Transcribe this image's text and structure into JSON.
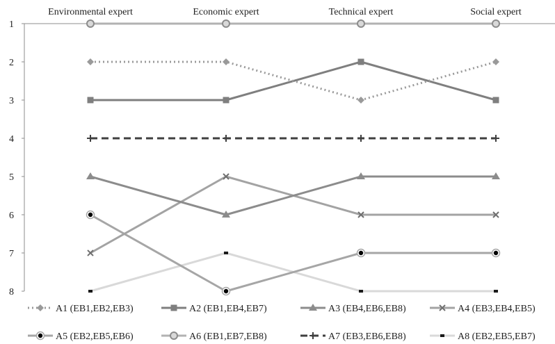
{
  "chart_data": {
    "type": "line",
    "title": "",
    "xlabel": "",
    "ylabel": "",
    "categories": [
      "Environmental expert",
      "Economic expert",
      "Technical expert",
      "Social expert"
    ],
    "y_ticks": [
      1,
      2,
      3,
      4,
      5,
      6,
      7,
      8
    ],
    "ylim": [
      1,
      8
    ],
    "y_inverted": true,
    "grid": false,
    "legend_position": "bottom",
    "series": [
      {
        "name": "A1 (EB1,EB2,EB3)",
        "values": [
          2,
          2,
          3,
          2
        ],
        "color": "#9a9a9a",
        "dash": "dotted",
        "marker": "diamond"
      },
      {
        "name": "A2 (EB1,EB4,EB7)",
        "values": [
          3,
          3,
          2,
          3
        ],
        "color": "#7f7f7f",
        "dash": "solid",
        "marker": "square"
      },
      {
        "name": "A3 (EB4,EB6,EB8)",
        "values": [
          5,
          6,
          5,
          5
        ],
        "color": "#8c8c8c",
        "dash": "solid",
        "marker": "triangle"
      },
      {
        "name": "A4 (EB3,EB4,EB5)",
        "values": [
          7,
          5,
          6,
          6
        ],
        "color": "#a3a3a3",
        "dash": "solid",
        "marker": "x"
      },
      {
        "name": "A5 (EB2,EB5,EB6)",
        "values": [
          6,
          8,
          7,
          7
        ],
        "color": "#a6a6a6",
        "dash": "solid",
        "marker": "filled-circle"
      },
      {
        "name": "A6 (EB1,EB7,EB8)",
        "values": [
          1,
          1,
          1,
          1
        ],
        "color": "#b2b2b2",
        "dash": "solid",
        "marker": "ring"
      },
      {
        "name": "A7 (EB3,EB6,EB8)",
        "values": [
          4,
          4,
          4,
          4
        ],
        "color": "#3f3f3f",
        "dash": "dashed",
        "marker": "plus"
      },
      {
        "name": "A8 (EB2,EB5,EB7)",
        "values": [
          8,
          7,
          8,
          8
        ],
        "color": "#d9d9d9",
        "dash": "solid",
        "marker": "dash"
      }
    ]
  }
}
